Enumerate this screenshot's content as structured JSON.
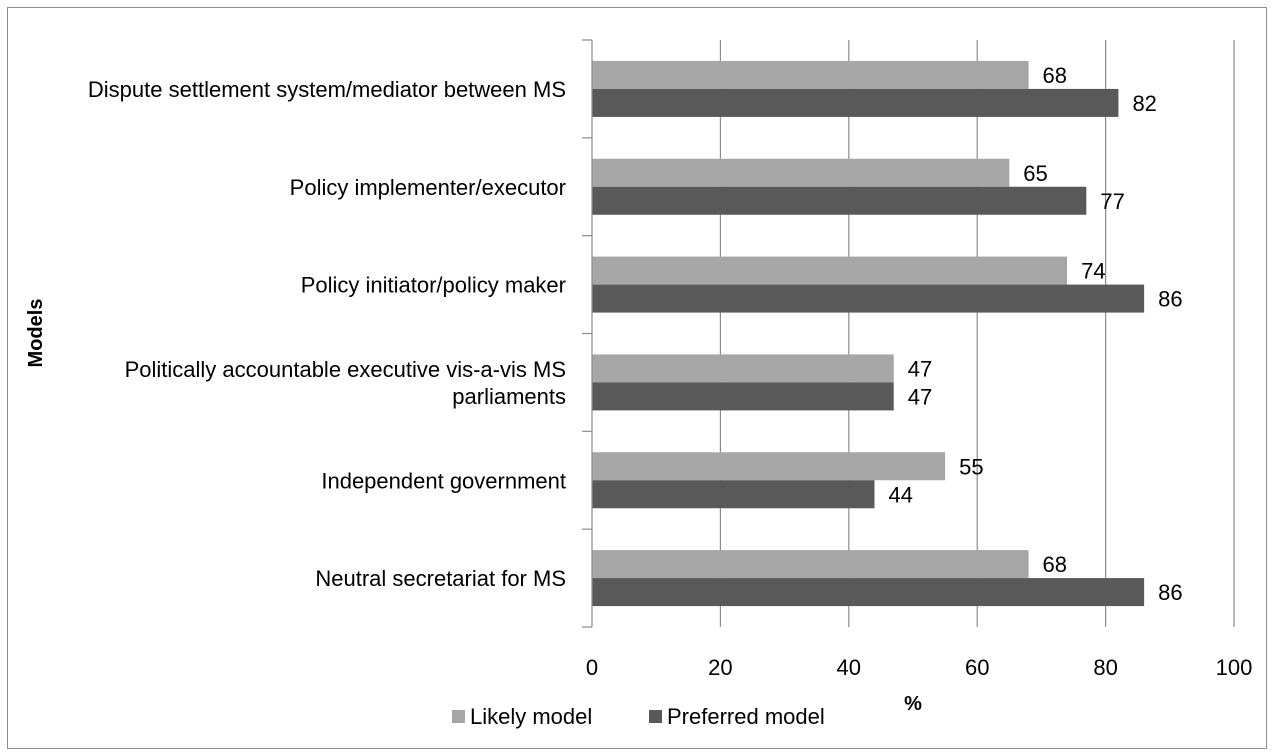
{
  "chart_data": {
    "type": "bar",
    "orientation": "horizontal",
    "categories": [
      "Dispute settlement system/mediator between MS",
      "Policy implementer/executor",
      "Policy initiator/policy maker",
      [
        "Politically accountable executive vis-a-vis MS",
        "parliaments"
      ],
      "Independent government",
      "Neutral secretariat for MS"
    ],
    "series": [
      {
        "name": "Likely model",
        "values": [
          68,
          65,
          74,
          47,
          55,
          68
        ],
        "color": "#a6a6a6"
      },
      {
        "name": "Preferred model",
        "values": [
          82,
          77,
          86,
          47,
          44,
          86
        ],
        "color": "#595959"
      }
    ],
    "xlabel": "%",
    "ylabel": "Models",
    "xlim": [
      0,
      100
    ],
    "xticks": [
      0,
      20,
      40,
      60,
      80,
      100
    ],
    "grid": true,
    "legend": "bottom"
  }
}
